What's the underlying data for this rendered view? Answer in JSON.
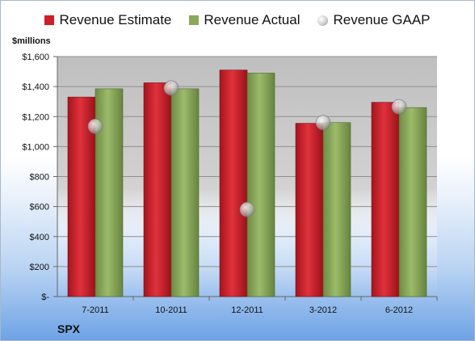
{
  "legend": {
    "estimate": "Revenue Estimate",
    "actual": "Revenue Actual",
    "gaap": "Revenue GAAP"
  },
  "units_label": "$millions",
  "company_label": "SPX",
  "colors": {
    "estimate": "#cc1f2a",
    "actual": "#8aa95a",
    "gaap": "#c9c9c9",
    "plot_bg": "#c0c0c0"
  },
  "chart_data": {
    "type": "bar",
    "categories": [
      "7-2011",
      "10-2011",
      "12-2011",
      "3-2012",
      "6-2012"
    ],
    "series": [
      {
        "name": "Revenue Estimate",
        "values": [
          1330,
          1425,
          1510,
          1155,
          1295
        ]
      },
      {
        "name": "Revenue Actual",
        "values": [
          1385,
          1385,
          1490,
          1160,
          1260
        ]
      },
      {
        "name": "Revenue GAAP",
        "values": [
          1135,
          1390,
          580,
          1160,
          1265
        ]
      }
    ],
    "y_ticks": [
      "$-",
      "$200",
      "$400",
      "$600",
      "$800",
      "$1,000",
      "$1,200",
      "$1,400",
      "$1,600"
    ],
    "ylim": [
      0,
      1600
    ],
    "ylabel": "$millions",
    "grid": true,
    "legend_position": "top"
  }
}
